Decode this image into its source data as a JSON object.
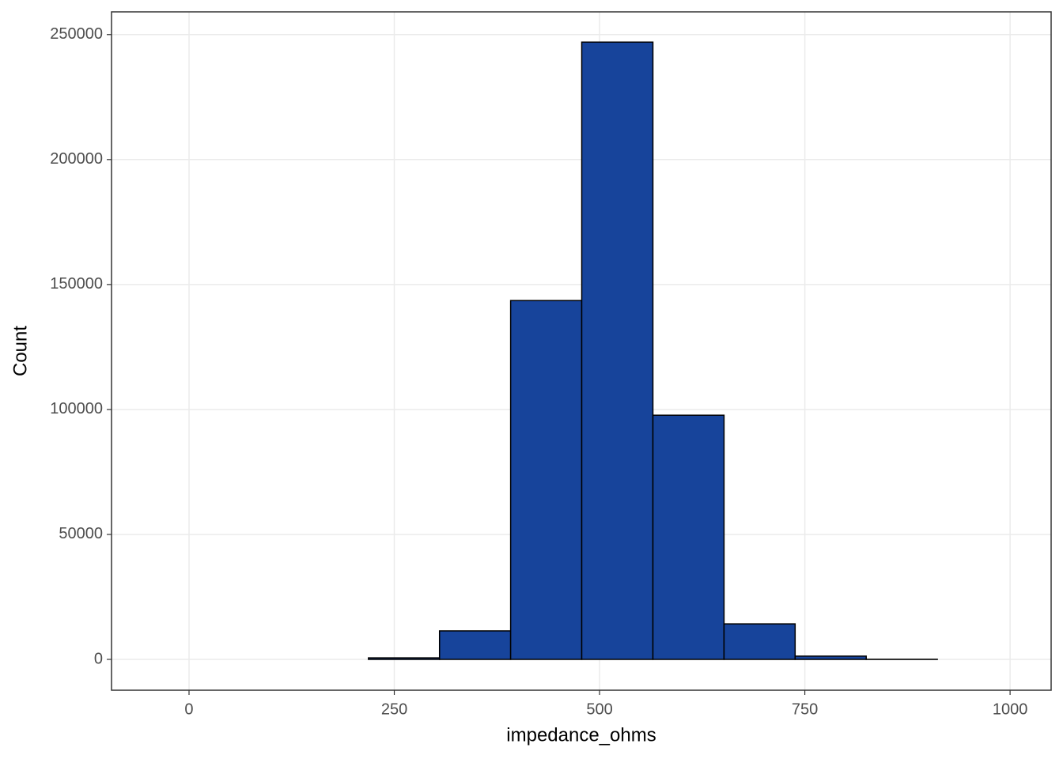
{
  "chart_data": {
    "type": "histogram",
    "x_label": "impedance_ohms",
    "y_label": "Count",
    "bins": [
      -41.4,
      45.2,
      131.9,
      218.5,
      305.1,
      391.7,
      478.3,
      565.0,
      651.6,
      738.2,
      824.8,
      911.4,
      998.0
    ],
    "counts": [
      0,
      0,
      0,
      600,
      11400,
      143600,
      247000,
      97700,
      14200,
      1300,
      50,
      0
    ],
    "color": "#17449b",
    "edgecolor": "#000000",
    "xlim": [
      -94.4,
      1050
    ],
    "ylim": [
      -12340,
      259100
    ],
    "xticks": [
      0,
      250,
      500,
      750,
      1000
    ],
    "yticks": [
      0,
      50000,
      100000,
      150000,
      200000,
      250000
    ],
    "grid": true
  }
}
